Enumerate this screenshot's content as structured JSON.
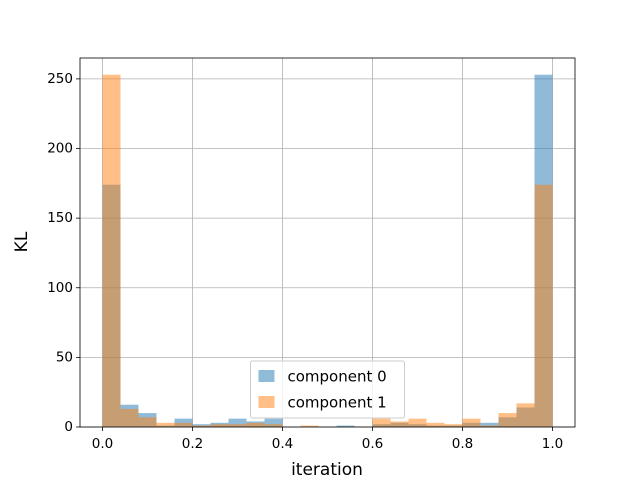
{
  "chart_data": {
    "type": "histogram",
    "xlabel": "iteration",
    "ylabel": "KL",
    "bins": [
      0,
      0.04,
      0.08,
      0.12,
      0.16,
      0.2,
      0.24,
      0.28,
      0.32,
      0.36,
      0.4,
      0.44,
      0.48,
      0.52,
      0.56,
      0.6,
      0.64,
      0.68,
      0.72,
      0.76,
      0.8,
      0.84,
      0.88,
      0.92,
      0.96,
      1
    ],
    "series": [
      {
        "name": "component 0",
        "color": "#1f77b4",
        "values": [
          174,
          16,
          10,
          1,
          6,
          2,
          3,
          6,
          4,
          6,
          0,
          0,
          0,
          1,
          0,
          2,
          3,
          2,
          1,
          1,
          3,
          3,
          7,
          14,
          253
        ]
      },
      {
        "name": "component 1",
        "color": "#ff7f0e",
        "values": [
          253,
          13,
          7,
          3,
          3,
          1,
          2,
          2,
          3,
          2,
          0,
          1,
          0,
          0,
          0,
          6,
          4,
          6,
          3,
          2,
          6,
          1,
          10,
          17,
          174
        ]
      }
    ],
    "opacity": 0.5,
    "xlim": [
      -0.05,
      1.05
    ],
    "ylim": [
      0,
      265
    ],
    "xticks": [
      {
        "value": 0,
        "label": "0.0"
      },
      {
        "value": 0.2,
        "label": "0.2"
      },
      {
        "value": 0.4,
        "label": "0.4"
      },
      {
        "value": 0.6,
        "label": "0.6"
      },
      {
        "value": 0.8,
        "label": "0.8"
      },
      {
        "value": 1,
        "label": "1.0"
      }
    ],
    "yticks": [
      0,
      50,
      100,
      150,
      200,
      250
    ],
    "grid": true,
    "legend": "lower center"
  }
}
